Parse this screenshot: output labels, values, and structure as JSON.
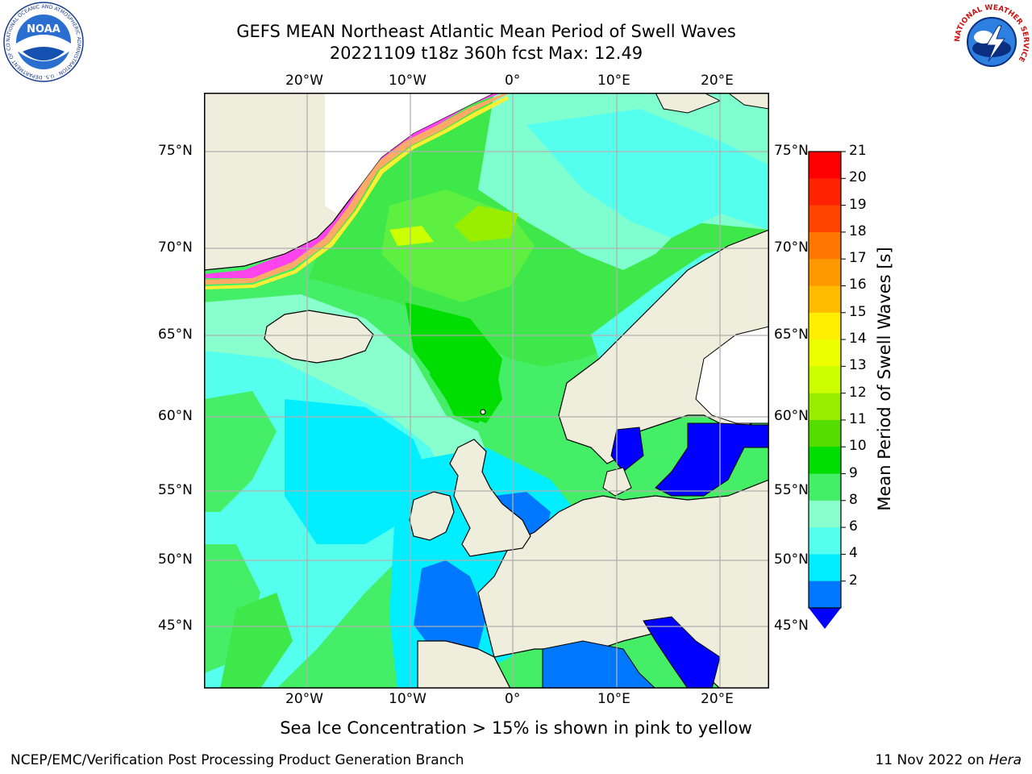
{
  "header": {
    "title_line1": "GEFS MEAN Northeast Atlantic Mean Period of Swell Waves",
    "title_line2": "20221109 t18z 360h fcst   Max: 12.49"
  },
  "logos": {
    "noaa": {
      "inner_text": "NOAA",
      "ring_text": "NATIONAL OCEANIC AND ATMOSPHERIC ADMINISTRATION · U.S. DEPARTMENT OF COMMERCE"
    },
    "nws": {
      "ring_text": "NATIONAL WEATHER SERVICE"
    }
  },
  "map": {
    "lon_labels": [
      "20°W",
      "10°W",
      "0°",
      "10°E",
      "20°E"
    ],
    "lat_labels": [
      "75°N",
      "70°N",
      "65°N",
      "60°N",
      "55°N",
      "50°N",
      "45°N"
    ],
    "colors": {
      "land": "#efeddc",
      "sea_ice_edge": [
        "#ff44ee",
        "#ffaa66",
        "#ffee33"
      ],
      "grid": "#b0b0b0"
    }
  },
  "colorbar": {
    "title": "Mean Period of Swell Waves [s]",
    "ticks": [
      "21",
      "20",
      "19",
      "18",
      "17",
      "16",
      "15",
      "14",
      "13",
      "12",
      "11",
      "10",
      "9",
      "8",
      "6",
      "4",
      "2"
    ],
    "colors_top_to_bottom": [
      "#ff0000",
      "#ff2200",
      "#ff4400",
      "#ff7700",
      "#ff9900",
      "#ffbb00",
      "#ffee00",
      "#eeff00",
      "#ccff00",
      "#99ee00",
      "#55dd00",
      "#00dd00",
      "#44ee66",
      "#88ffcc",
      "#55ffee",
      "#00eeff",
      "#0077ff"
    ],
    "under_color": "#0000ff"
  },
  "caption": "Sea Ice Concentration > 15% is shown in pink to yellow",
  "footer": {
    "left": "NCEP/EMC/Verification Post Processing Product Generation Branch",
    "right_prefix": "11 Nov 2022 on ",
    "right_host": "Hera"
  }
}
